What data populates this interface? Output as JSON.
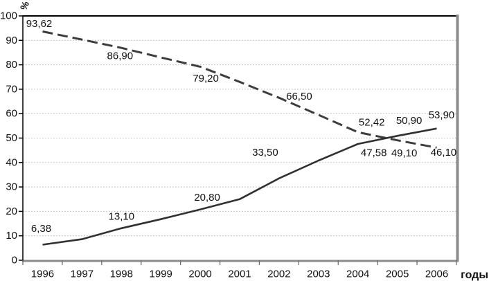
{
  "chart_data": {
    "type": "line",
    "title": "",
    "x_title": "годы",
    "y_title": "%",
    "x": [
      1996,
      1997,
      1998,
      1999,
      2000,
      2001,
      2002,
      2003,
      2004,
      2005,
      2006
    ],
    "ylim": [
      0,
      100
    ],
    "y_tick_step": 10,
    "y_ticks": [
      0,
      10,
      20,
      30,
      40,
      50,
      60,
      70,
      80,
      90,
      100
    ],
    "grid": "dotted horizontal gridlines every 10 units",
    "legend": "none",
    "decimal_separator": ",",
    "colors": {
      "axis": "#000000",
      "plot_border_gray": "#8c8c8c",
      "gridline": "#b0b0b0",
      "dashed_line": "#3d3d3d",
      "solid_line": "#303030"
    },
    "series": [
      {
        "name": "declining-dashed-series",
        "line_style": "dashed",
        "color": "#3d3d3d",
        "values": [
          93.62,
          90.3,
          86.9,
          83.0,
          79.2,
          73.0,
          66.5,
          59.5,
          52.42,
          49.1,
          46.1
        ],
        "labeled_points": [
          {
            "year": 1996,
            "value": 93.62,
            "text": "93,62",
            "dx": -5,
            "dy": -11
          },
          {
            "year": 1998,
            "value": 86.9,
            "text": "86,90",
            "dx": -2,
            "dy": 12
          },
          {
            "year": 2000,
            "value": 79.2,
            "text": "79,20",
            "dx": 8,
            "dy": 17
          },
          {
            "year": 2002,
            "value": 66.5,
            "text": "66,50",
            "dx": 29,
            "dy": -2
          },
          {
            "year": 2004,
            "value": 52.42,
            "text": "52,42",
            "dx": 20,
            "dy": -14
          },
          {
            "year": 2005,
            "value": 49.1,
            "text": "49,10",
            "dx": 10,
            "dy": 19
          },
          {
            "year": 2006,
            "value": 46.1,
            "text": "46,10",
            "dx": 10,
            "dy": 7
          }
        ]
      },
      {
        "name": "rising-solid-series",
        "line_style": "solid",
        "color": "#303030",
        "values": [
          6.38,
          8.6,
          13.1,
          16.8,
          20.8,
          25.0,
          33.5,
          40.8,
          47.58,
          50.9,
          53.9
        ],
        "labeled_points": [
          {
            "year": 1996,
            "value": 6.38,
            "text": "6,38",
            "dx": -2,
            "dy": -23
          },
          {
            "year": 1998,
            "value": 13.1,
            "text": "13,10",
            "dx": 0,
            "dy": -17
          },
          {
            "year": 2000,
            "value": 20.8,
            "text": "20,80",
            "dx": 10,
            "dy": -17
          },
          {
            "year": 2002,
            "value": 33.5,
            "text": "33,50",
            "dx": -20,
            "dy": -37
          },
          {
            "year": 2004,
            "value": 47.58,
            "text": "47,58",
            "dx": 23,
            "dy": 13
          },
          {
            "year": 2005,
            "value": 50.9,
            "text": "50,90",
            "dx": 17,
            "dy": -22
          },
          {
            "year": 2006,
            "value": 53.9,
            "text": "53,90",
            "dx": 7,
            "dy": -19
          }
        ]
      }
    ]
  }
}
